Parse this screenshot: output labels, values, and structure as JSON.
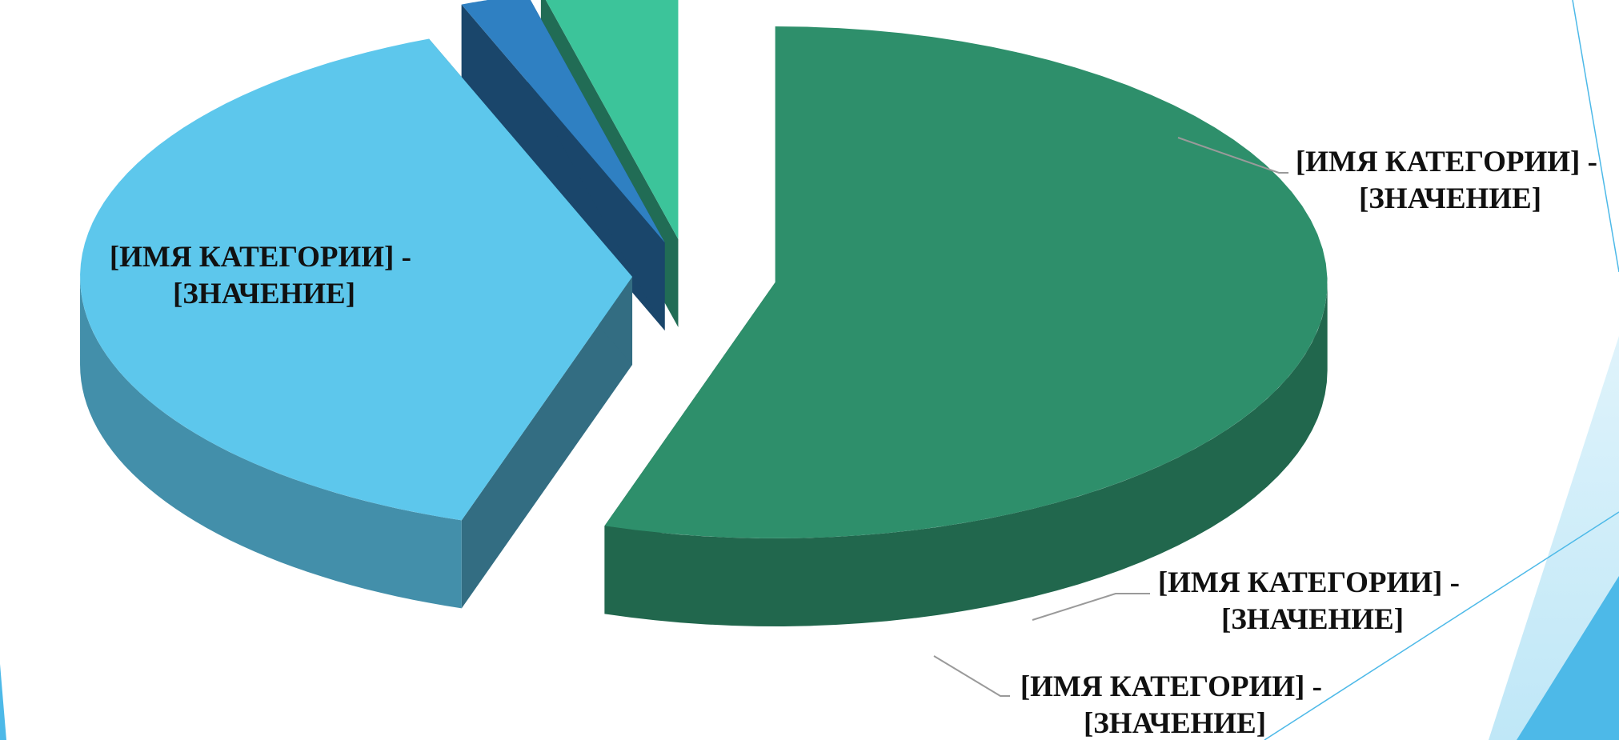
{
  "chart_data": {
    "type": "pie",
    "style": "3d-exploded",
    "legend": "none",
    "colors": {
      "slice_large": "#2e8f6b",
      "slice_medium": "#5dc7ec",
      "slice_small_blue": "#2f80c2",
      "slice_small_green": "#3cc49a",
      "leader_line": "#9a9a9a",
      "decor_light": "#bfe7f7",
      "decor_accent": "#4db9e8"
    },
    "slices": [
      {
        "label_line1": "[ИМЯ КАТЕГОРИИ] -",
        "label_line2": "[ЗНАЧЕНИЕ]",
        "value": 0.55,
        "color": "#2e8f6b"
      },
      {
        "label_line1": "[ИМЯ КАТЕГОРИИ] -",
        "label_line2": "[ЗНАЧЕНИЕ]",
        "value": 0.39,
        "color": "#5dc7ec"
      },
      {
        "label_line1": "[ИМЯ КАТЕГОРИИ] -",
        "label_line2": "[ЗНАЧЕНИЕ]",
        "value": 0.02,
        "color": "#2f80c2"
      },
      {
        "label_line1": "[ИМЯ КАТЕГОРИИ] -",
        "label_line2": "[ЗНАЧЕНИЕ]",
        "value": 0.04,
        "color": "#3cc49a"
      }
    ]
  }
}
